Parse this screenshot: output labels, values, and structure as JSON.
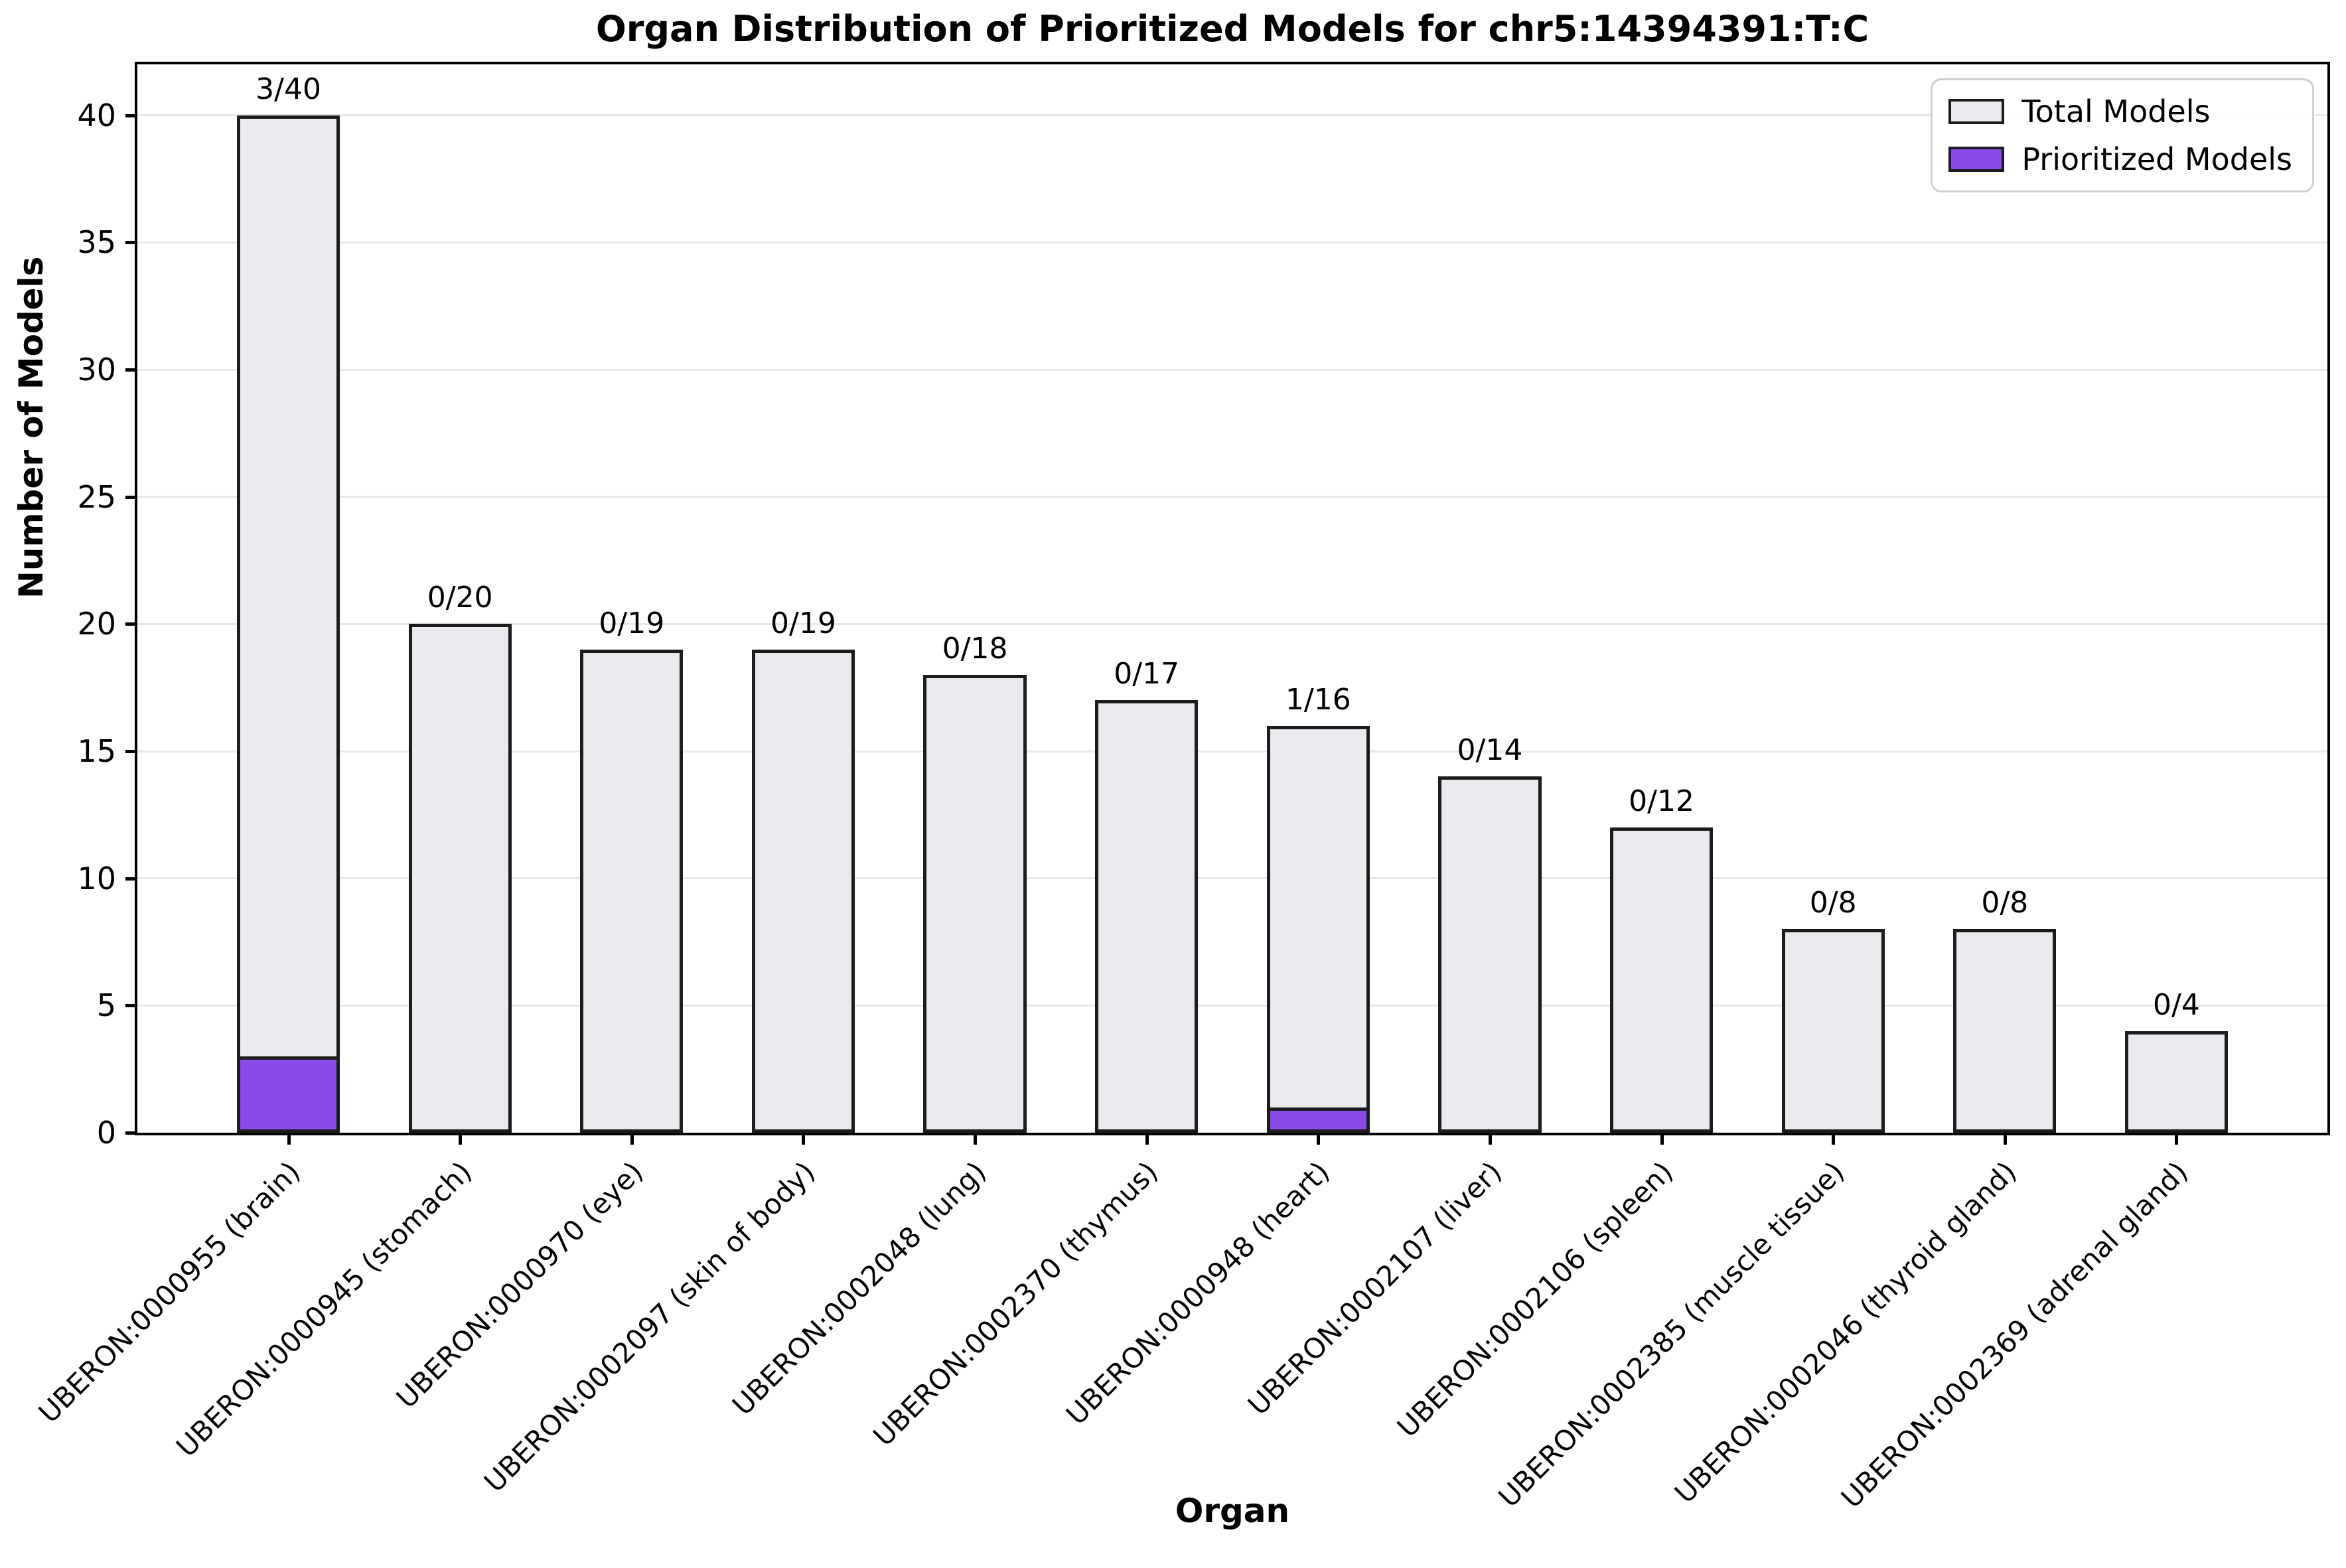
{
  "title": "Organ Distribution of Prioritized Models for chr5:14394391:T:C",
  "chart_data": {
    "type": "bar",
    "title": "Organ Distribution of Prioritized Models for chr5:14394391:T:C",
    "xlabel": "Organ",
    "ylabel": "Number of Models",
    "categories": [
      "UBERON:0000955 (brain)",
      "UBERON:0000945 (stomach)",
      "UBERON:0000970 (eye)",
      "UBERON:0002097 (skin of body)",
      "UBERON:0002048 (lung)",
      "UBERON:0002370 (thymus)",
      "UBERON:0000948 (heart)",
      "UBERON:0002107 (liver)",
      "UBERON:0002106 (spleen)",
      "UBERON:0002385 (muscle tissue)",
      "UBERON:0002046 (thyroid gland)",
      "UBERON:0002369 (adrenal gland)"
    ],
    "series": [
      {
        "name": "Total Models",
        "color": "#e9e9ee",
        "values": [
          40,
          20,
          19,
          19,
          18,
          17,
          16,
          14,
          12,
          8,
          8,
          4
        ]
      },
      {
        "name": "Prioritized Models",
        "color": "#8a4be8",
        "values": [
          3,
          0,
          0,
          0,
          0,
          0,
          1,
          0,
          0,
          0,
          0,
          0
        ]
      }
    ],
    "bar_value_labels": [
      "3/40",
      "0/20",
      "0/19",
      "0/19",
      "0/18",
      "0/17",
      "1/16",
      "0/14",
      "0/12",
      "0/8",
      "0/8",
      "0/4"
    ],
    "ylim": [
      0,
      42
    ],
    "yticks": [
      0,
      5,
      10,
      15,
      20,
      25,
      30,
      35,
      40
    ],
    "grid": true,
    "grid_color": "#e8e8e8",
    "bar_edge_color": "#1c1c1c",
    "legend_position": "upper right",
    "legend": [
      "Total Models",
      "Prioritized Models"
    ]
  }
}
